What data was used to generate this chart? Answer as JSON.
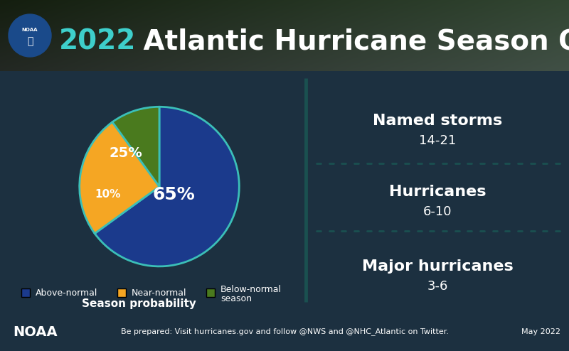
{
  "title_year": "2022",
  "title_rest": " Atlantic Hurricane Season Outlook",
  "title_year_color": "#3ECFCB",
  "title_rest_color": "#FFFFFF",
  "bg_main": "#3BBFB8",
  "bg_top_color": "#2a3520",
  "bg_bottom": "#1C3040",
  "pie_values": [
    65,
    25,
    10
  ],
  "pie_colors": [
    "#1B3A8C",
    "#F5A623",
    "#4A7A1E"
  ],
  "legend_labels": [
    "Above-normal",
    "Near-normal",
    "Below-normal\nseason"
  ],
  "season_prob_label": "Season probability",
  "stats": [
    {
      "label": "Named storms",
      "value": "14-21"
    },
    {
      "label": "Hurricanes",
      "value": "6-10"
    },
    {
      "label": "Major hurricanes",
      "value": "3-6"
    }
  ],
  "footer_text": "Be prepared: Visit hurricanes.gov and follow @NWS and @NHC_Atlantic on Twitter.",
  "footer_date": "May 2022",
  "footer_noaa": "NOAA",
  "divider_line_color": "#1a4a50",
  "dotted_line_color": "#2a6060"
}
